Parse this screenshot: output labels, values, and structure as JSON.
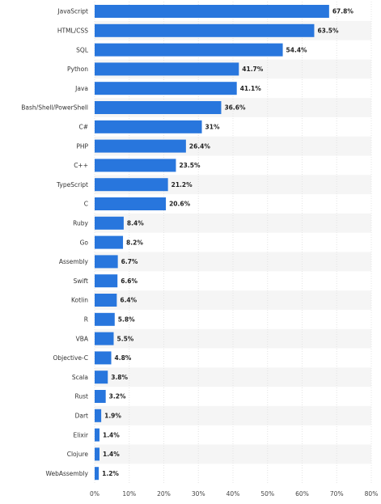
{
  "chart_data": {
    "type": "bar",
    "orientation": "horizontal",
    "categories": [
      "JavaScript",
      "HTML/CSS",
      "SQL",
      "Python",
      "Java",
      "Bash/Shell/PowerShell",
      "C#",
      "PHP",
      "C++",
      "TypeScript",
      "C",
      "Ruby",
      "Go",
      "Assembly",
      "Swift",
      "Kotlin",
      "R",
      "VBA",
      "Objective-C",
      "Scala",
      "Rust",
      "Dart",
      "Elixir",
      "Clojure",
      "WebAssembly"
    ],
    "values": [
      67.8,
      63.5,
      54.4,
      41.7,
      41.1,
      36.6,
      31,
      26.4,
      23.5,
      21.2,
      20.6,
      8.4,
      8.2,
      6.7,
      6.6,
      6.4,
      5.8,
      5.5,
      4.8,
      3.8,
      3.2,
      1.9,
      1.4,
      1.4,
      1.2
    ],
    "value_labels": [
      "67.8%",
      "63.5%",
      "54.4%",
      "41.7%",
      "41.1%",
      "36.6%",
      "31%",
      "26.4%",
      "23.5%",
      "21.2%",
      "20.6%",
      "8.4%",
      "8.2%",
      "6.7%",
      "6.6%",
      "6.4%",
      "5.8%",
      "5.5%",
      "4.8%",
      "3.8%",
      "3.2%",
      "1.9%",
      "1.4%",
      "1.4%",
      "1.2%"
    ],
    "xlim": [
      0,
      80
    ],
    "x_ticks": [
      0,
      10,
      20,
      30,
      40,
      50,
      60,
      70,
      80
    ],
    "x_tick_labels": [
      "0%",
      "10%",
      "20%",
      "30%",
      "40%",
      "50%",
      "60%",
      "70%",
      "80%"
    ],
    "title": "",
    "xlabel": "",
    "ylabel": "",
    "grid": true,
    "bar_color": "#2876dd",
    "alternating_row_bands": true
  }
}
